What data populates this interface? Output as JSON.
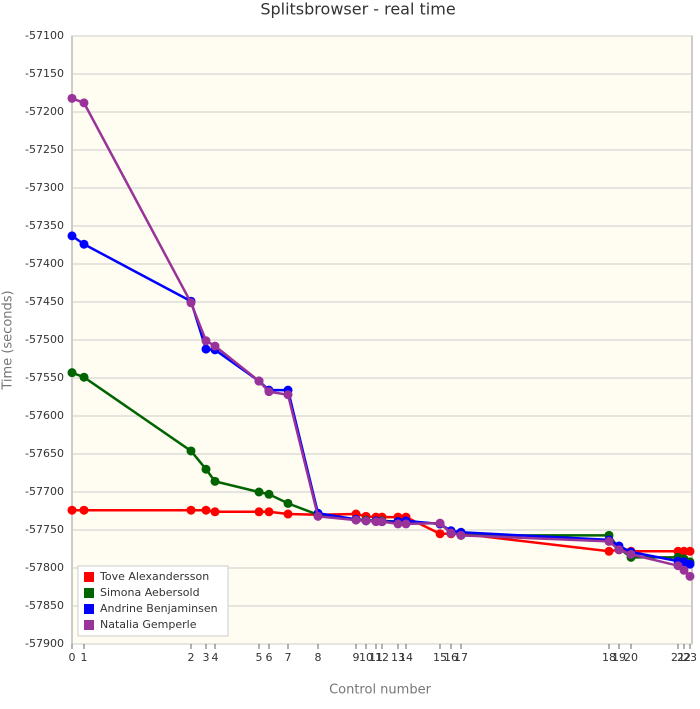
{
  "chart_data": {
    "type": "line",
    "title": "Splitsbrowser - real time",
    "x_label": "Control number",
    "y_label": "Time (seconds)",
    "x": [
      0,
      60,
      595,
      670,
      715,
      935,
      985,
      1080,
      1230,
      1420,
      1470,
      1520,
      1550,
      1630,
      1670,
      1840,
      1895,
      1945,
      2685,
      2735,
      2795,
      3030,
      3060,
      3090
    ],
    "xlim": [
      0,
      3100
    ],
    "xticks": [
      {
        "value": 0,
        "label": "0"
      },
      {
        "value": 60,
        "label": "1"
      },
      {
        "value": 595,
        "label": "2"
      },
      {
        "value": 670,
        "label": "3"
      },
      {
        "value": 715,
        "label": "4"
      },
      {
        "value": 935,
        "label": "5"
      },
      {
        "value": 985,
        "label": "6"
      },
      {
        "value": 1080,
        "label": "7"
      },
      {
        "value": 1230,
        "label": "8"
      },
      {
        "value": 1420,
        "label": "9"
      },
      {
        "value": 1470,
        "label": "10"
      },
      {
        "value": 1520,
        "label": "11"
      },
      {
        "value": 1550,
        "label": "12"
      },
      {
        "value": 1630,
        "label": "13"
      },
      {
        "value": 1670,
        "label": "14"
      },
      {
        "value": 1840,
        "label": "15"
      },
      {
        "value": 1895,
        "label": "16"
      },
      {
        "value": 1945,
        "label": "17"
      },
      {
        "value": 2685,
        "label": "18"
      },
      {
        "value": 2735,
        "label": "19"
      },
      {
        "value": 2795,
        "label": "20"
      },
      {
        "value": 3030,
        "label": "21"
      },
      {
        "value": 3060,
        "label": "22"
      },
      {
        "value": 3090,
        "label": "23"
      }
    ],
    "ylim": [
      -57900,
      -57100
    ],
    "yticks": [
      -57100,
      -57150,
      -57200,
      -57250,
      -57300,
      -57350,
      -57400,
      -57450,
      -57500,
      -57550,
      -57600,
      -57650,
      -57700,
      -57750,
      -57800,
      -57850,
      -57900
    ],
    "grid": true,
    "legend": "lower left",
    "series": [
      {
        "name": "Tove Alexandersson",
        "color": "#ff0000",
        "values": [
          -57724,
          -57724,
          -57724,
          -57724,
          -57726,
          -57726,
          -57726,
          -57729,
          -57730,
          -57729,
          -57732,
          -57733,
          -57733,
          -57733,
          -57733,
          -57755,
          -57755,
          -57755,
          -57778,
          -57776,
          -57778,
          -57778,
          -57778,
          -57778
        ]
      },
      {
        "name": "Simona Aebersold",
        "color": "#006400",
        "values": [
          -57543,
          -57549,
          -57646,
          -57670,
          -57686,
          -57700,
          -57703,
          -57715,
          -57730,
          -57736,
          -57737,
          -57738,
          -57738,
          -57739,
          -57739,
          -57742,
          -57753,
          -57757,
          -57757,
          -57774,
          -57786,
          -57786,
          -57788,
          -57792
        ]
      },
      {
        "name": "Andrine Benjaminsen",
        "color": "#0000ff",
        "values": [
          -57363,
          -57374,
          -57449,
          -57512,
          -57513,
          -57554,
          -57566,
          -57566,
          -57728,
          -57736,
          -57738,
          -57738,
          -57739,
          -57739,
          -57738,
          -57742,
          -57751,
          -57753,
          -57763,
          -57771,
          -57779,
          -57791,
          -57792,
          -57795
        ]
      },
      {
        "name": "Natalia Gemperle",
        "color": "#993399",
        "values": [
          -57182,
          -57188,
          -57451,
          -57501,
          -57508,
          -57554,
          -57568,
          -57572,
          -57732,
          -57737,
          -57738,
          -57739,
          -57739,
          -57742,
          -57742,
          -57741,
          -57754,
          -57757,
          -57765,
          -57776,
          -57782,
          -57797,
          -57803,
          -57811
        ]
      }
    ]
  }
}
